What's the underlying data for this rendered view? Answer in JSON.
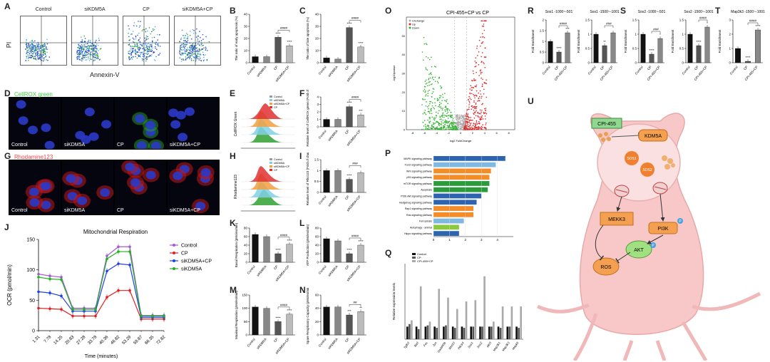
{
  "panel_letters": {
    "A": "A",
    "B": "B",
    "C": "C",
    "D": "D",
    "E": "E",
    "F": "F",
    "G": "G",
    "H": "H",
    "I": "I",
    "J": "J",
    "K": "K",
    "L": "L",
    "M": "M",
    "N": "N",
    "O": "O",
    "P": "P",
    "Q": "Q",
    "R": "R",
    "S": "S",
    "T": "T",
    "U": "U"
  },
  "groups": [
    "Control",
    "siKDM5A",
    "CP",
    "siKDM5A+CP"
  ],
  "flow": {
    "titles": [
      "Control",
      "siKDM5A",
      "CP",
      "siKDM5A+CP"
    ],
    "xlabel": "Annexin-V",
    "ylabel": "PI"
  },
  "micro": {
    "cellrox_title": "CellROX green",
    "rhod_title": "Rhodamine123",
    "labels": [
      "Control",
      "siKDM5A",
      "CP",
      "siKDM5A+CP"
    ]
  },
  "histE": {
    "ylabel": "CellROX Green",
    "legend": [
      "Control",
      "siKDM5A",
      "siKDM5A+CP",
      "CP"
    ]
  },
  "histH": {
    "ylabel": "Rhodamine123",
    "legend": [
      "Control",
      "siKDM5A",
      "siKDM5A+CP",
      "CP"
    ]
  },
  "colors": {
    "control": "#111111",
    "si": "#888888",
    "cp": "#555555",
    "sicp": "#bbbbbb",
    "green": "#2a9a2a",
    "red": "#d42020",
    "accent": "#f8c8c8"
  },
  "chart_data": [
    {
      "id": "B",
      "type": "bar",
      "categories": [
        "Control",
        "siKDM5A",
        "CP",
        "siKDM5A+CP"
      ],
      "values": [
        5,
        5,
        21,
        14
      ],
      "ylim": [
        0,
        40
      ],
      "yticks": [
        0,
        10,
        20,
        30,
        40
      ],
      "ylabel": "The ratio of early apoptosis (%)",
      "sig": [
        "",
        "",
        "****",
        "****"
      ],
      "bracket": "####"
    },
    {
      "id": "C",
      "type": "bar",
      "categories": [
        "Control",
        "siKDM5A",
        "CP",
        "siKDM5A+CP"
      ],
      "values": [
        4,
        3,
        29,
        13
      ],
      "ylim": [
        0,
        40
      ],
      "yticks": [
        0,
        10,
        20,
        30,
        40
      ],
      "ylabel": "The ratio of late apoptosis (%)",
      "sig": [
        "",
        "",
        "****",
        "****"
      ],
      "bracket": "####"
    },
    {
      "id": "F",
      "type": "bar",
      "categories": [
        "Control",
        "siKDM5A",
        "CP",
        "siKDM5A+CP"
      ],
      "values": [
        1,
        1,
        2.7,
        1.6
      ],
      "ylim": [
        0,
        4
      ],
      "yticks": [
        0,
        1,
        2,
        3,
        4
      ],
      "ylabel": "Relative level of CellROX green (Fold of change)",
      "sig": [
        "",
        "",
        "****",
        "***"
      ],
      "bracket": "####"
    },
    {
      "id": "I",
      "type": "bar",
      "categories": [
        "Control",
        "siKDM5A",
        "CP",
        "siKDM5A+CP"
      ],
      "values": [
        1,
        1,
        0.6,
        0.9
      ],
      "ylim": [
        0,
        1.5
      ],
      "yticks": [
        0,
        0.5,
        1,
        1.5
      ],
      "ylabel": "Relative level of Rho123 (Fold of change)",
      "sig": [
        "",
        "",
        "****",
        ""
      ],
      "bracket": "###"
    },
    {
      "id": "K",
      "type": "bar",
      "categories": [
        "Control",
        "siKDM5A",
        "CP",
        "siKDM5A+CP"
      ],
      "values": [
        65,
        60,
        20,
        42
      ],
      "ylim": [
        0,
        80
      ],
      "yticks": [
        0,
        20,
        40,
        60,
        80
      ],
      "ylabel": "Basal Respiration (pMoles/min)",
      "sig": [
        "",
        "",
        "****",
        "****"
      ],
      "bracket": "####"
    },
    {
      "id": "L",
      "type": "bar",
      "categories": [
        "Control",
        "siKDM5A",
        "CP",
        "siKDM5A+CP"
      ],
      "values": [
        55,
        50,
        20,
        40
      ],
      "ylim": [
        0,
        80
      ],
      "yticks": [
        0,
        20,
        40,
        60,
        80
      ],
      "ylabel": "ATP Production (pMoles/min)",
      "sig": [
        "",
        "",
        "****",
        "****"
      ],
      "bracket": "####"
    },
    {
      "id": "M",
      "type": "bar",
      "categories": [
        "Control",
        "siKDM5A",
        "CP",
        "siKDM5A+CP"
      ],
      "values": [
        105,
        100,
        50,
        78
      ],
      "ylim": [
        0,
        150
      ],
      "yticks": [
        0,
        50,
        100,
        150
      ],
      "ylabel": "Maximal Respiration (pMoles/min)",
      "sig": [
        "",
        "",
        "****",
        "****"
      ],
      "bracket": "####"
    },
    {
      "id": "N",
      "type": "bar",
      "categories": [
        "Control",
        "siKDM5A",
        "CP",
        "siKDM5A+CP"
      ],
      "values": [
        42,
        42,
        30,
        35
      ],
      "ylim": [
        0,
        60
      ],
      "yticks": [
        0,
        20,
        40,
        60
      ],
      "ylabel": "Spare Respiratory Capacity (pMoles/min)",
      "sig": [
        "",
        "",
        "***",
        "**"
      ],
      "bracket": "##"
    },
    {
      "id": "R1",
      "type": "bar",
      "title": "Sos1 -1000~-501",
      "categories": [
        "Control",
        "CP",
        "CPI-455+CP"
      ],
      "values": [
        1,
        0.5,
        1.4
      ],
      "ylim": [
        0,
        2
      ],
      "yticks": [
        0,
        0.5,
        1,
        1.5,
        2
      ],
      "ylabel": "Fold Enrichment",
      "sig": [
        "",
        "****",
        "***"
      ],
      "bracket": "####"
    },
    {
      "id": "R2",
      "type": "bar",
      "title": "Sos1 -1500~-1001",
      "categories": [
        "Control",
        "CP",
        "CPI-455+CP"
      ],
      "values": [
        1,
        0.6,
        1.05
      ],
      "ylim": [
        0,
        1.5
      ],
      "yticks": [
        0,
        0.5,
        1,
        1.5
      ],
      "ylabel": "Fold Enrichment",
      "sig": [
        "",
        "**",
        ""
      ],
      "bracket": "###"
    },
    {
      "id": "S1",
      "type": "bar",
      "title": "Sos2 -1000~-501",
      "categories": [
        "Control",
        "CP",
        "CPI-455+CP"
      ],
      "values": [
        1,
        0.3,
        0.85
      ],
      "ylim": [
        0,
        1.5
      ],
      "yticks": [
        0,
        0.5,
        1,
        1.5
      ],
      "ylabel": "Fold Enrichment",
      "sig": [
        "",
        "****",
        "*"
      ],
      "bracket": "###"
    },
    {
      "id": "S2",
      "type": "bar",
      "title": "Sos2 -1500~-1001",
      "categories": [
        "Control",
        "CP",
        "CPI-455+CP"
      ],
      "values": [
        1,
        0.6,
        1.25
      ],
      "ylim": [
        0,
        1.5
      ],
      "yticks": [
        0,
        0.5,
        1,
        1.5
      ],
      "ylabel": "Fold Enrichment",
      "sig": [
        "",
        "****",
        "*"
      ],
      "bracket": "####"
    },
    {
      "id": "T1",
      "type": "bar",
      "title": "Map3k3 -1500~-1001",
      "categories": [
        "Control",
        "CP",
        "CPI-455+CP"
      ],
      "values": [
        1,
        0.1,
        2.3
      ],
      "ylim": [
        0,
        3
      ],
      "yticks": [
        0,
        1,
        2,
        3
      ],
      "ylabel": "Fold Enrichment",
      "sig": [
        "",
        "****",
        "****"
      ],
      "bracket": "####"
    },
    {
      "id": "J",
      "type": "line",
      "title": "Mitochondrial Respiration",
      "xlabel": "Time (minutes)",
      "ylabel": "OCR (pmol/min)",
      "ylim": [
        0,
        150
      ],
      "yticks": [
        0,
        50,
        100,
        150
      ],
      "x": [
        "1.31",
        "7.78",
        "14.25",
        "20.83",
        "27.28",
        "33.78",
        "40.36",
        "46.82",
        "53.29",
        "59.87",
        "66.35",
        "72.82"
      ],
      "series": [
        {
          "name": "Control",
          "color": "#a855d8",
          "values": [
            93,
            90,
            88,
            37,
            37,
            37,
            123,
            138,
            138,
            25,
            25,
            25
          ]
        },
        {
          "name": "CP",
          "color": "#e02020",
          "values": [
            37,
            36,
            35,
            24,
            24,
            24,
            55,
            66,
            66,
            19,
            19,
            19
          ]
        },
        {
          "name": "siKDM5A+CP",
          "color": "#1f40e0",
          "values": [
            64,
            62,
            57,
            32,
            32,
            32,
            98,
            110,
            108,
            22,
            22,
            22
          ]
        },
        {
          "name": "siKDM5A",
          "color": "#22b022",
          "values": [
            88,
            85,
            84,
            35,
            35,
            35,
            118,
            130,
            130,
            24,
            24,
            24
          ]
        }
      ]
    },
    {
      "id": "P",
      "type": "bar",
      "orientation": "horizontal",
      "categories": [
        "MAPK signaling pathway",
        "FoxO signaling pathway",
        "Wnt signaling pathway",
        "p53 signaling pathway",
        "mTOR signaling pathway",
        "Apoptosis",
        "PI3K-Akt signaling pathway",
        "Hedgehog signaling pathway",
        "Rap1 signaling pathway",
        "Ras signaling pathway",
        "Ferroptosis",
        "Autophagy - animal",
        "Hippo signaling pathway"
      ],
      "values": [
        4.5,
        3.9,
        3.6,
        3.5,
        3.5,
        3.4,
        3.0,
        2.7,
        2.5,
        2.5,
        1.9,
        1.6,
        1.6
      ],
      "colors": [
        "#2d64b0",
        "#7fb8e0",
        "#f48c28",
        "#f48c28",
        "#2a9a3a",
        "#2a9a3a",
        "#2d64b0",
        "#2d64b0",
        "#f48c28",
        "#f48c28",
        "#7fb8e0",
        "#8ac840",
        "#2d64b0"
      ],
      "xlim": [
        0,
        5
      ],
      "xticks": [
        0,
        1,
        2,
        3,
        4
      ]
    },
    {
      "id": "Q",
      "type": "bar",
      "ylabel": "Relative expression levels",
      "categories": [
        "Tgfb3",
        "Bad",
        "Fos",
        "Jun",
        "Gadd45b",
        "Wnt10",
        "Pik3r4",
        "Sos1",
        "Sos2",
        "Akt3",
        "Map3k1",
        "Map3k3",
        "Mapk6"
      ],
      "series": [
        {
          "name": "Control",
          "color": "#111111",
          "values": [
            1,
            1,
            1,
            1,
            1,
            1,
            1,
            1,
            1,
            1,
            1,
            1,
            1
          ]
        },
        {
          "name": "CP",
          "color": "#555555",
          "values": [
            1.2,
            0.8,
            1.1,
            0.9,
            1.1,
            0.9,
            0.9,
            1,
            1,
            1,
            0.9,
            1,
            0.9
          ]
        },
        {
          "name": "CPI-455+CP",
          "color": "#aaaaaa",
          "values": [
            1.5,
            4.2,
            1.4,
            4.0,
            3.3,
            2.4,
            3.0,
            3.1,
            5.0,
            1.4,
            2.6,
            2.6,
            2.6
          ]
        }
      ],
      "ylim": [
        0,
        6
      ],
      "legend": [
        "Control",
        "CP",
        "CPI-455+CP"
      ]
    },
    {
      "id": "O",
      "type": "scatter",
      "title": "CPI-455+CP vs CP",
      "xlabel": "log2 FoldChange",
      "ylabel": "-log10pvalue",
      "legend": [
        "Unchange",
        "Up",
        "Down"
      ],
      "legend_colors": [
        "#aaaaaa",
        "#e02020",
        "#2ab02a"
      ],
      "xticks": [
        -8,
        -6,
        -4,
        -2,
        0,
        2,
        4,
        6,
        8
      ],
      "yticks": [
        0,
        10,
        20,
        30,
        40,
        50
      ]
    }
  ],
  "schematic": {
    "drug": "CPI-455",
    "kdm": "KDM5A",
    "sos1": "SOS1",
    "sos2": "SOS2",
    "mekk3": "MEKK3",
    "pi3k": "PI3K",
    "akt": "AKT",
    "ros": "ROS",
    "p": "P"
  }
}
